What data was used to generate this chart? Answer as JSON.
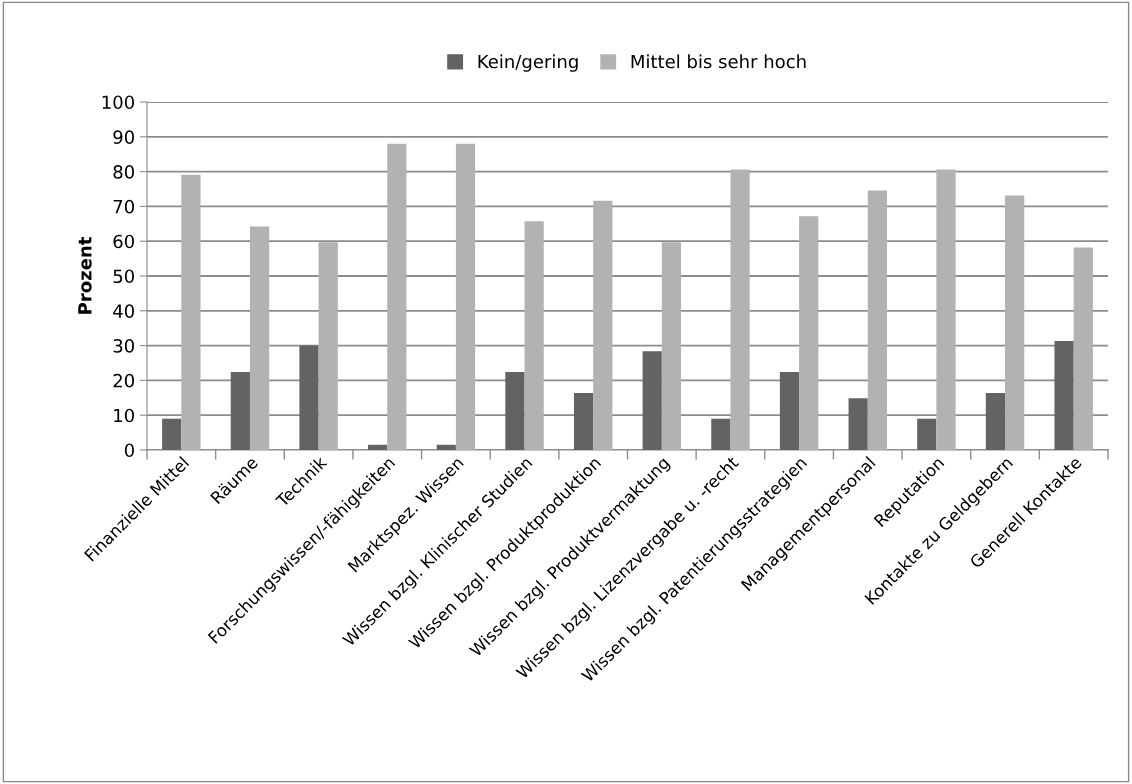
{
  "chart_data": {
    "type": "bar",
    "ylabel": "Prozent",
    "categories": [
      "Finanzielle Mittel",
      "Räume",
      "Technik",
      "Forschungswissen/-fähigkeiten",
      "Marktspez. Wissen",
      "Wissen bzgl. Klinischer Studien",
      "Wissen bzgl. Produktproduktion",
      "Wissen bzgl. Produktvermaktung",
      "Wissen bzgl. Lizenzvergabe u. -recht",
      "Wissen bzgl. Patentierungsstrategien",
      "Managementpersonal",
      "Reputation",
      "Kontakte zu Geldgebern",
      "Generell Kontakte"
    ],
    "series": [
      {
        "name": "Kein/gering",
        "color": "#636363",
        "values": [
          9,
          22.4,
          30,
          1.5,
          1.5,
          22.4,
          16.4,
          28.4,
          9,
          22.4,
          14.9,
          9,
          16.4,
          31.3
        ]
      },
      {
        "name": "Mittel bis sehr hoch",
        "color": "#b2b2b2",
        "values": [
          79.1,
          64.2,
          59.7,
          88,
          88,
          65.7,
          71.6,
          59.7,
          80.6,
          67.2,
          74.6,
          80.6,
          73.1,
          58.2
        ]
      }
    ],
    "ylim": [
      0,
      100
    ],
    "yticks": [
      0,
      10,
      20,
      30,
      40,
      50,
      60,
      70,
      80,
      90,
      100
    ],
    "grid": "y",
    "legend": "top"
  }
}
